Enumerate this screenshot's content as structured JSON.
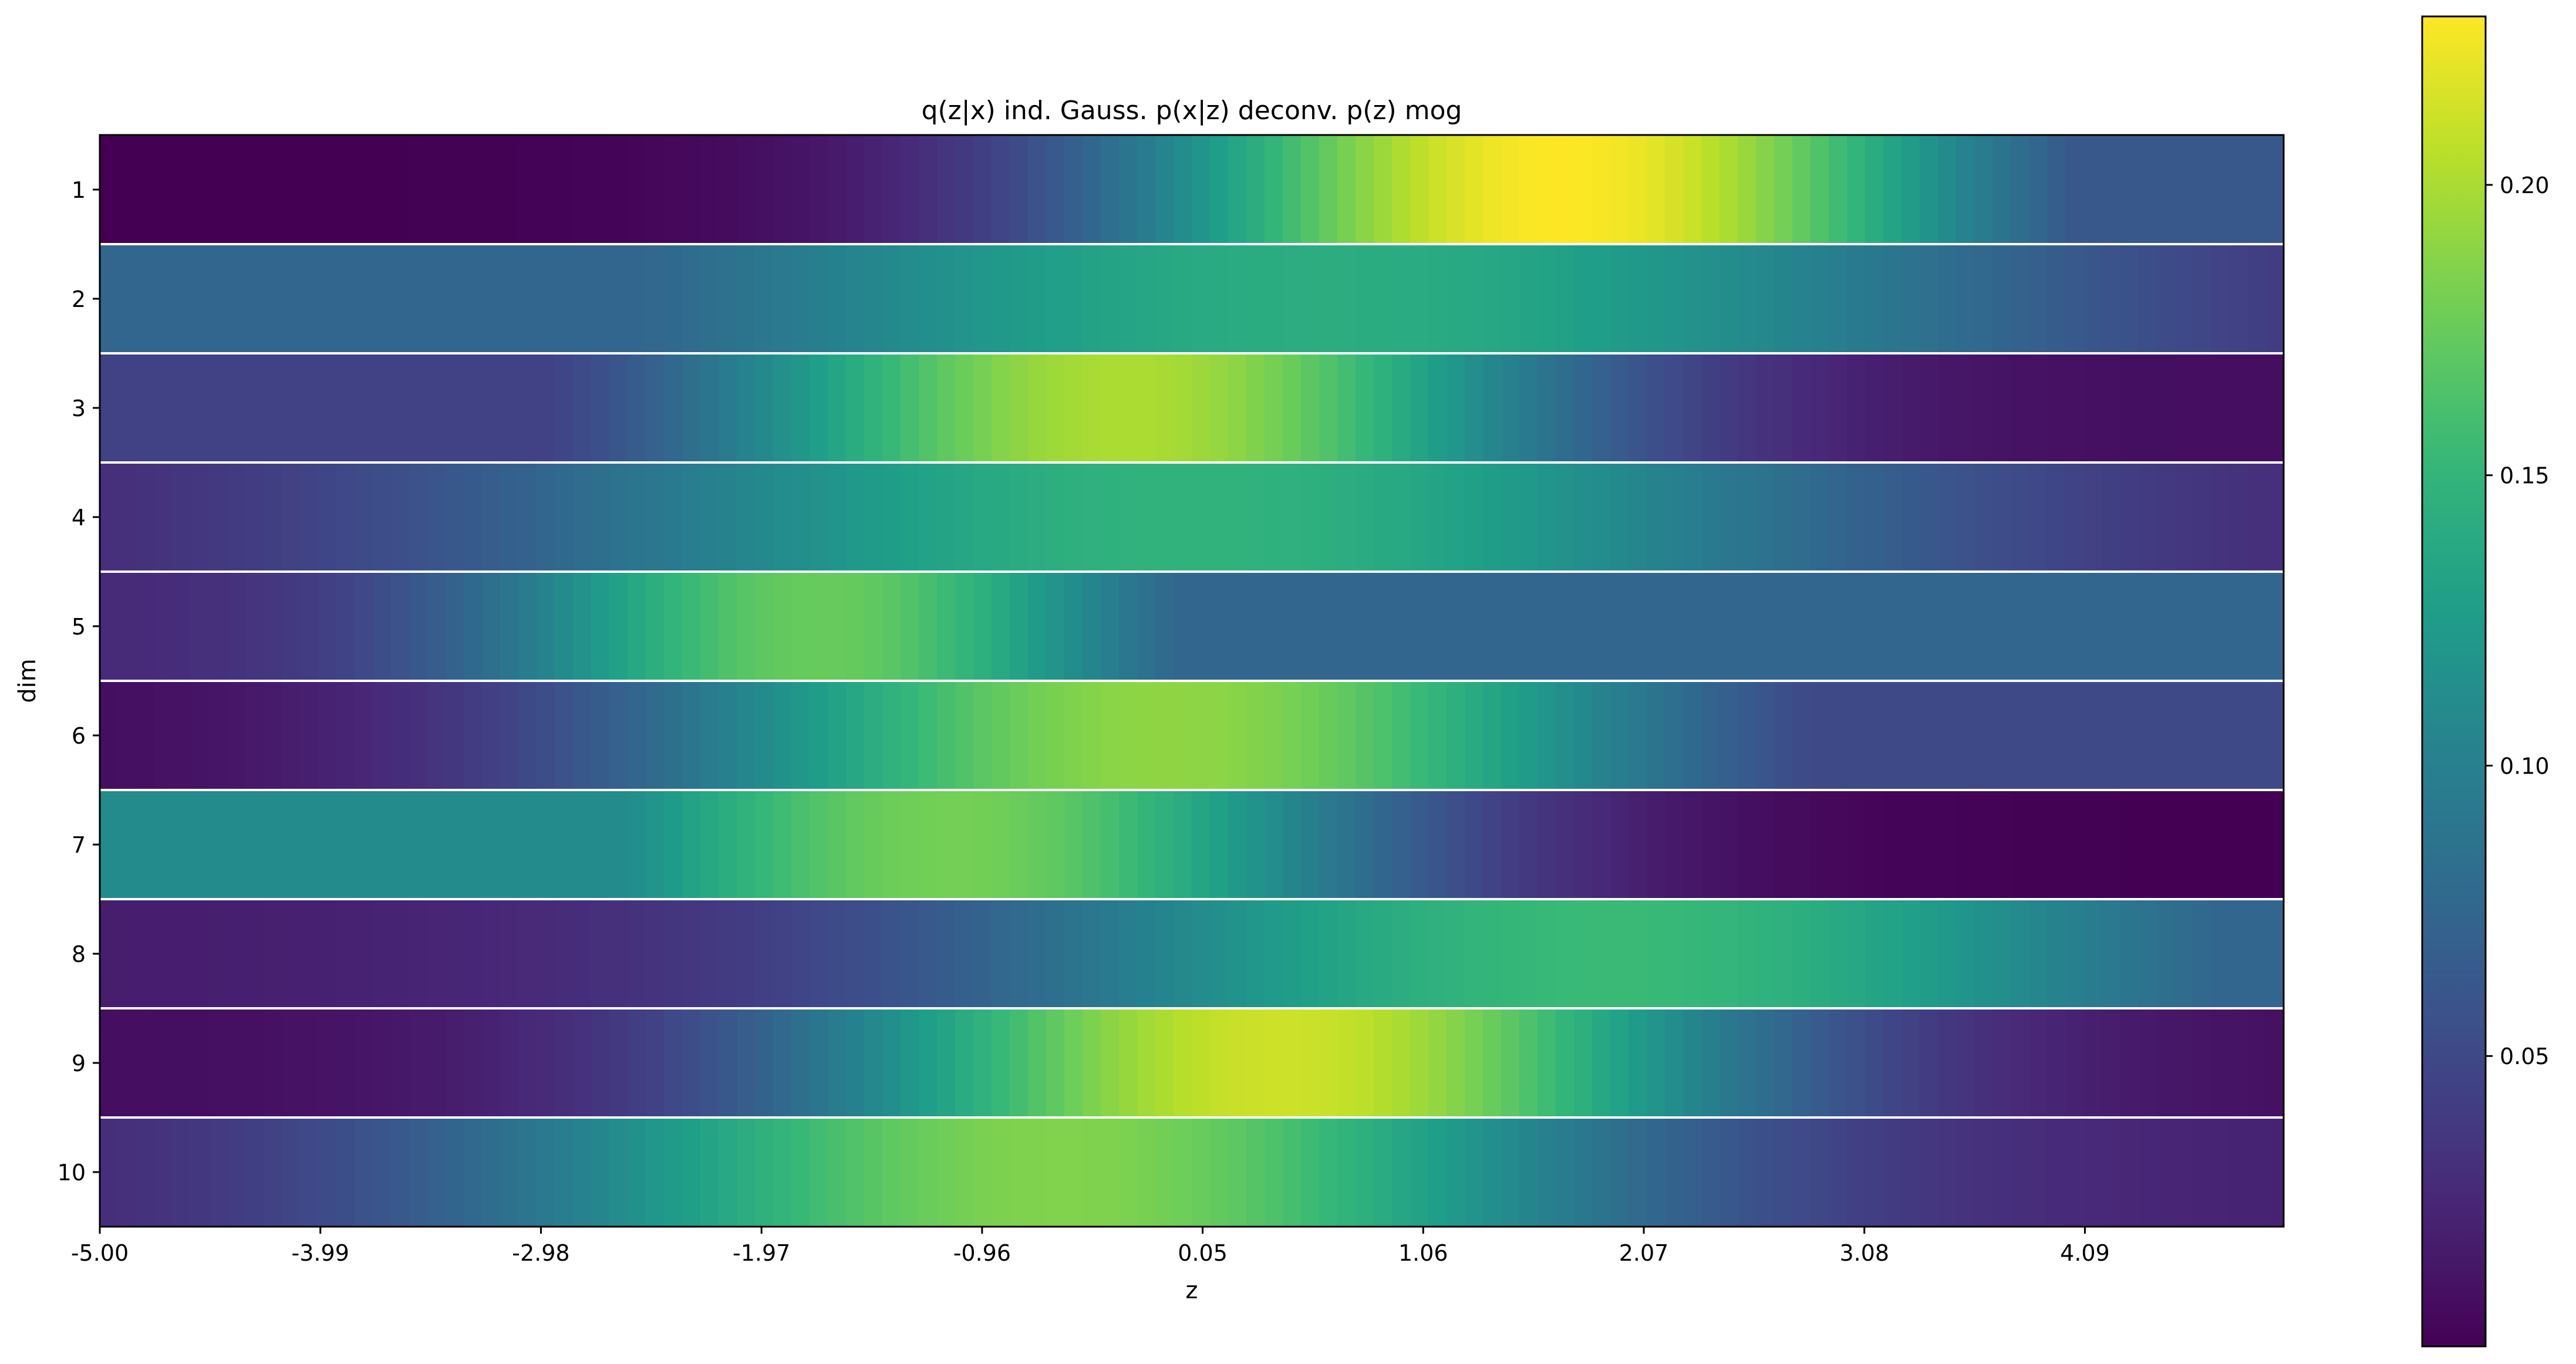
{
  "chart_data": {
    "type": "heatmap",
    "title": "q(z|x) ind. Gauss. p(x|z) deconv. p(z) mog",
    "xlabel": "z",
    "ylabel": "dim",
    "xlim": [
      -5.0,
      5.0
    ],
    "x_tick_labels": [
      "-5.00",
      "-3.99",
      "-2.98",
      "-1.97",
      "-0.96",
      "0.05",
      "1.06",
      "2.07",
      "3.08",
      "4.09"
    ],
    "y_tick_labels": [
      "1",
      "2",
      "3",
      "4",
      "5",
      "6",
      "7",
      "8",
      "9",
      "10"
    ],
    "colormap": "viridis",
    "vmin": 0.0,
    "vmax": 0.229,
    "colorbar_ticks": [
      0.05,
      0.1,
      0.15,
      0.2
    ],
    "colorbar_tick_labels": [
      "0.05",
      "0.10",
      "0.15",
      "0.20"
    ],
    "row_separator_color": "#ffffff",
    "rows": [
      {
        "dim": "1",
        "mu": 1.7,
        "sigma": 1.45,
        "peak": 0.229,
        "base": 0.0,
        "tail": "right",
        "tail_level": 0.062
      },
      {
        "dim": "2",
        "mu": 0.6,
        "sigma": 2.6,
        "peak": 0.142,
        "base": 0.008,
        "tail": "left",
        "tail_level": 0.075
      },
      {
        "dim": "3",
        "mu": -0.3,
        "sigma": 1.45,
        "peak": 0.2,
        "base": 0.008,
        "tail": "left",
        "tail_level": 0.045
      },
      {
        "dim": "4",
        "mu": 0.0,
        "sigma": 2.3,
        "peak": 0.148,
        "base": 0.018
      },
      {
        "dim": "5",
        "mu": -1.7,
        "sigma": 1.1,
        "peak": 0.175,
        "base": 0.025,
        "tail": "right",
        "tail_level": 0.075
      },
      {
        "dim": "6",
        "mu": -0.1,
        "sigma": 1.75,
        "peak": 0.19,
        "base": 0.005,
        "tail": "right",
        "tail_level": 0.05
      },
      {
        "dim": "7",
        "mu": -1.1,
        "sigma": 1.5,
        "peak": 0.18,
        "base": 0.0,
        "tail": "left",
        "tail_level": 0.11
      },
      {
        "dim": "8",
        "mu": 1.9,
        "sigma": 2.1,
        "peak": 0.155,
        "base": 0.018,
        "tail": "right",
        "tail_level": 0.075
      },
      {
        "dim": "9",
        "mu": 0.4,
        "sigma": 1.55,
        "peak": 0.212,
        "base": 0.008
      },
      {
        "dim": "10",
        "mu": -0.6,
        "sigma": 1.85,
        "peak": 0.185,
        "base": 0.02
      }
    ]
  }
}
